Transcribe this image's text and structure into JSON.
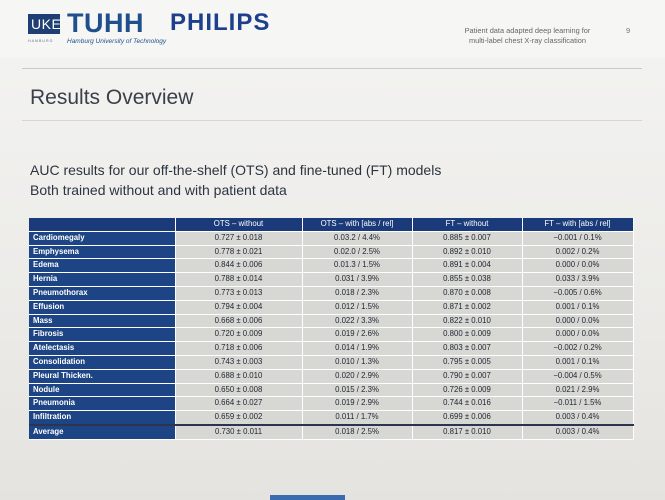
{
  "header": {
    "uke_logo": "UKE",
    "uke_subtext": "HAMBURG",
    "tuhh_logo": "TUHH",
    "tuhh_subtext": "Hamburg University of Technology",
    "philips_logo": "PHILIPS",
    "talk_title_line1": "Patient data adapted deep learning for",
    "talk_title_line2": "multi-label chest X-ray classification",
    "page_number": "9"
  },
  "slide": {
    "title": "Results Overview",
    "subtitle_line1": "AUC results for our off-the-shelf (OTS) and fine-tuned (FT) models",
    "subtitle_line2": "Both trained without and with patient data"
  },
  "table": {
    "columns": [
      "",
      "OTS – without",
      "OTS – with [abs / rel]",
      "FT – without",
      "FT – with [abs / rel]"
    ],
    "rows": [
      {
        "label": "Cardiomegaly",
        "ots_without": "0.727 ± 0.018",
        "ots_with": "0.03.2 / 4.4%",
        "ft_without": "0.885 ± 0.007",
        "ft_with": "−0.001 / 0.1%"
      },
      {
        "label": "Emphysema",
        "ots_without": "0.778 ± 0.021",
        "ots_with": "0.02.0 / 2.5%",
        "ft_without": "0.892 ± 0.010",
        "ft_with": "0.002 / 0.2%"
      },
      {
        "label": "Edema",
        "ots_without": "0.844 ± 0.006",
        "ots_with": "0.01.3 / 1.5%",
        "ft_without": "0.891 ± 0.004",
        "ft_with": "0.000 / 0.0%"
      },
      {
        "label": "Hernia",
        "ots_without": "0.788 ± 0.014",
        "ots_with": "0.031 / 3.9%",
        "ft_without": "0.855 ± 0.038",
        "ft_with": "0.033 / 3.9%"
      },
      {
        "label": "Pneumothorax",
        "ots_without": "0.773 ± 0.013",
        "ots_with": "0.018 / 2.3%",
        "ft_without": "0.870 ± 0.008",
        "ft_with": "−0.005 / 0.6%"
      },
      {
        "label": "Effusion",
        "ots_without": "0.794 ± 0.004",
        "ots_with": "0.012 / 1.5%",
        "ft_without": "0.871 ± 0.002",
        "ft_with": "0.001 / 0.1%"
      },
      {
        "label": "Mass",
        "ots_without": "0.668 ± 0.006",
        "ots_with": "0.022 / 3.3%",
        "ft_without": "0.822 ± 0.010",
        "ft_with": "0.000 / 0.0%"
      },
      {
        "label": "Fibrosis",
        "ots_without": "0.720 ± 0.009",
        "ots_with": "0.019 / 2.6%",
        "ft_without": "0.800 ± 0.009",
        "ft_with": "0.000 / 0.0%"
      },
      {
        "label": "Atelectasis",
        "ots_without": "0.718 ± 0.006",
        "ots_with": "0.014 / 1.9%",
        "ft_without": "0.803 ± 0.007",
        "ft_with": "−0.002 / 0.2%"
      },
      {
        "label": "Consolidation",
        "ots_without": "0.743 ± 0.003",
        "ots_with": "0.010 / 1.3%",
        "ft_without": "0.795 ± 0.005",
        "ft_with": "0.001 / 0.1%"
      },
      {
        "label": "Pleural Thicken.",
        "ots_without": "0.688 ± 0.010",
        "ots_with": "0.020 / 2.9%",
        "ft_without": "0.790 ± 0.007",
        "ft_with": "−0.004 / 0.5%"
      },
      {
        "label": "Nodule",
        "ots_without": "0.650 ± 0.008",
        "ots_with": "0.015 / 2.3%",
        "ft_without": "0.726 ± 0.009",
        "ft_with": "0.021 / 2.9%"
      },
      {
        "label": "Pneumonia",
        "ots_without": "0.664 ± 0.027",
        "ots_with": "0.019 / 2.9%",
        "ft_without": "0.744 ± 0.016",
        "ft_with": "−0.011 / 1.5%"
      },
      {
        "label": "Infiltration",
        "ots_without": "0.659 ± 0.002",
        "ots_with": "0.011 / 1.7%",
        "ft_without": "0.699 ± 0.006",
        "ft_with": "0.003 / 0.4%"
      },
      {
        "label": "Average",
        "ots_without": "0.730 ± 0.011",
        "ots_with": "0.018 / 2.5%",
        "ft_without": "0.817 ± 0.010",
        "ft_with": "0.003 / 0.4%"
      }
    ]
  },
  "colors": {
    "header_blue": "#1a3a7a",
    "row_label_blue": "#1d4585",
    "cell_grey": "#d7d7d3",
    "tuhh_blue": "#1f4f8c",
    "philips_blue": "#1d3f8c"
  }
}
